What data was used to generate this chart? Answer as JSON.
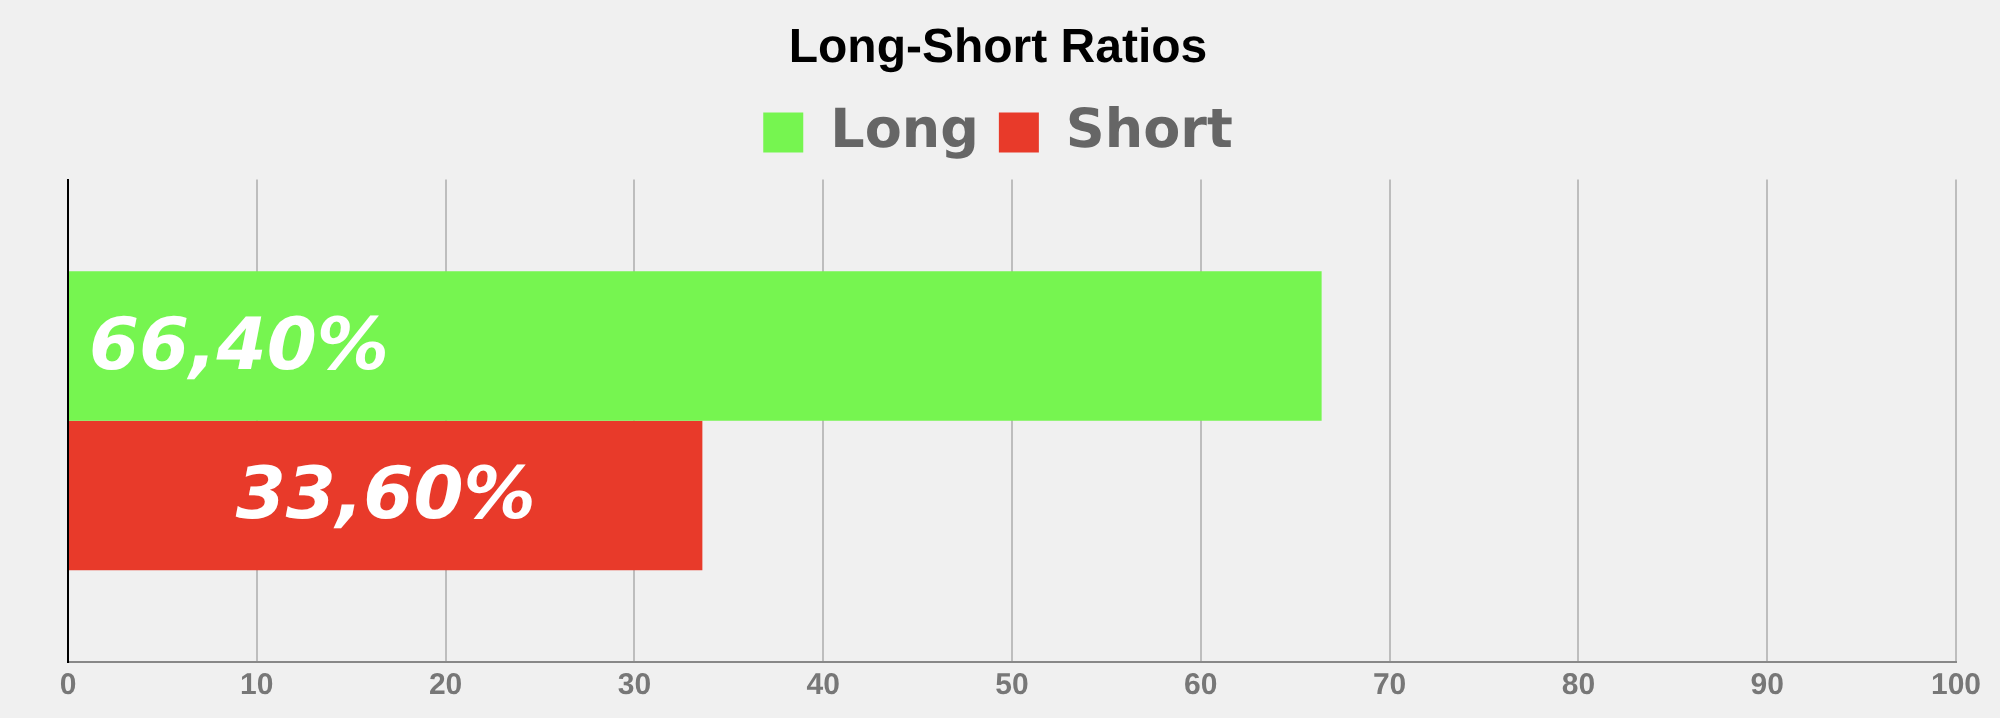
{
  "chart_data": {
    "type": "bar",
    "orientation": "horizontal",
    "title": "Long-Short Ratios",
    "categories": [
      null
    ],
    "series": [
      {
        "name": "Long",
        "color": "#76f550",
        "values": [
          66.4
        ],
        "value_labels": [
          "66,40%"
        ]
      },
      {
        "name": "Short",
        "color": "#e83a2a",
        "values": [
          33.6
        ],
        "value_labels": [
          "33,60%"
        ]
      }
    ],
    "xlim": [
      0,
      100
    ],
    "xticks": [
      0,
      10,
      20,
      30,
      40,
      50,
      60,
      70,
      80,
      90,
      100
    ],
    "grid": "x",
    "legend": "top"
  }
}
